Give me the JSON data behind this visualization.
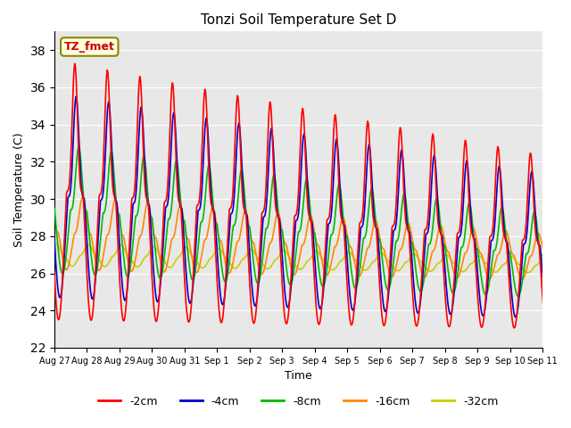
{
  "title": "Tonzi Soil Temperature Set D",
  "xlabel": "Time",
  "ylabel": "Soil Temperature (C)",
  "ylim": [
    22,
    39
  ],
  "yticks": [
    22,
    24,
    26,
    28,
    30,
    32,
    34,
    36,
    38
  ],
  "background_color": "#e8e8e8",
  "legend_label": "TZ_fmet",
  "series": {
    "-2cm": {
      "color": "#ff0000",
      "linewidth": 1.2
    },
    "-4cm": {
      "color": "#0000cc",
      "linewidth": 1.2
    },
    "-8cm": {
      "color": "#00bb00",
      "linewidth": 1.2
    },
    "-16cm": {
      "color": "#ff8800",
      "linewidth": 1.2
    },
    "-32cm": {
      "color": "#cccc00",
      "linewidth": 1.2
    }
  },
  "xtick_labels": [
    "Aug 27",
    "Aug 28",
    "Aug 29",
    "Aug 30",
    "Aug 31",
    "Sep 1",
    "Sep 2",
    "Sep 3",
    "Sep 4",
    "Sep 5",
    "Sep 6",
    "Sep 7",
    "Sep 8",
    "Sep 9",
    "Sep 10",
    "Sep 11"
  ],
  "n_days": 16,
  "samples_per_day": 48
}
